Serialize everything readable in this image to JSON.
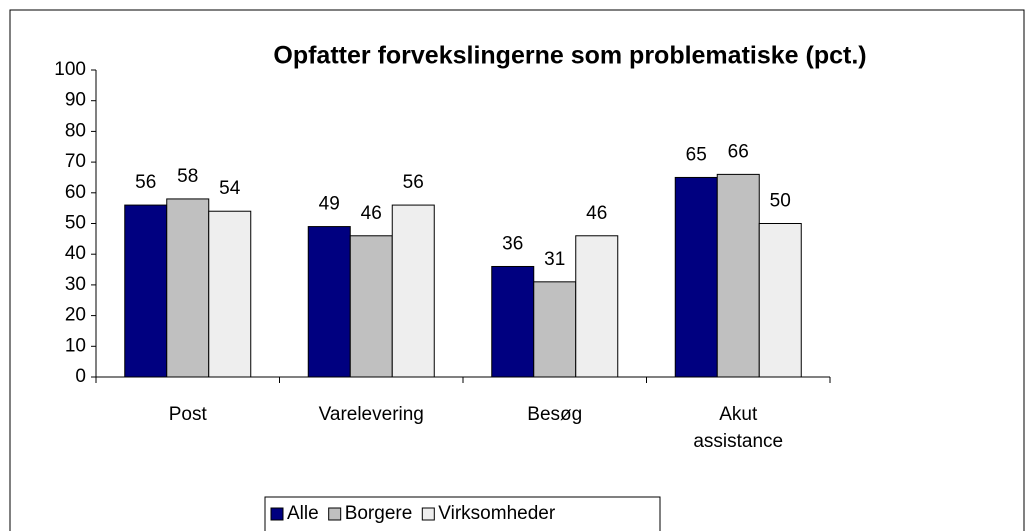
{
  "chart_data": {
    "type": "bar",
    "title": "Opfatter forvekslingerne som problematiske (pct.)",
    "categories": [
      "Post",
      "Varelevering",
      "Besøg",
      "Akut assistance"
    ],
    "series": [
      {
        "name": "Alle",
        "color": "#000080",
        "values": [
          56,
          49,
          36,
          65
        ]
      },
      {
        "name": "Borgere",
        "color": "#c0c0c0",
        "values": [
          58,
          46,
          31,
          66
        ]
      },
      {
        "name": "Virksomheder",
        "color": "#eeeeee",
        "values": [
          54,
          56,
          46,
          50
        ]
      }
    ],
    "ylim": [
      0,
      100
    ],
    "yticks": [
      0,
      10,
      20,
      30,
      40,
      50,
      60,
      70,
      80,
      90,
      100
    ],
    "legend": "bottom"
  }
}
